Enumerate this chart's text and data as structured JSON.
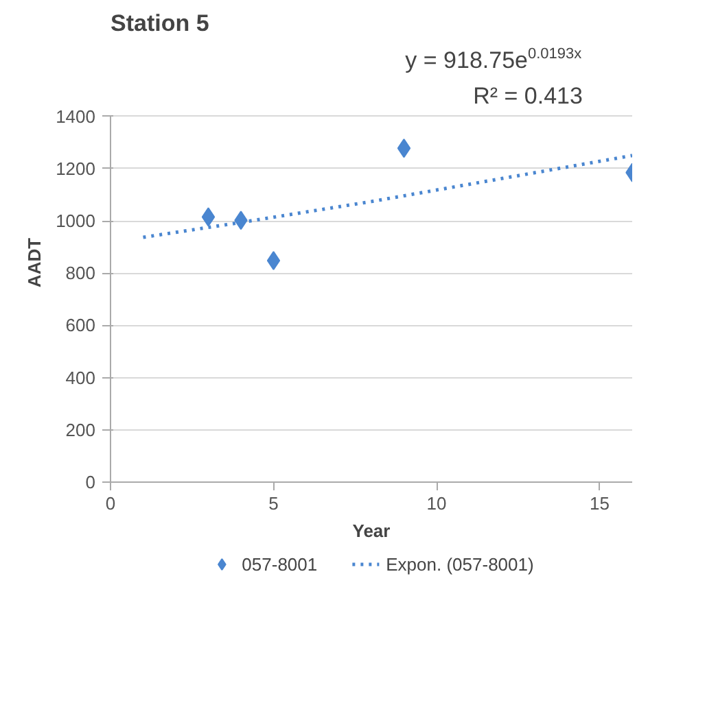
{
  "chart_data": {
    "type": "scatter",
    "title": "Station 5",
    "xlabel": "Year",
    "ylabel": "AADT",
    "annotations": [
      "y = 918.75e$^{0.0193x}$",
      "R² = 0.413"
    ],
    "series": [
      {
        "name": "057-8001",
        "color": "#4a86d0",
        "marker": "diamond",
        "x": [
          3,
          4,
          5,
          9,
          16
        ],
        "values": [
          1015,
          1002,
          848,
          1278,
          1185
        ]
      },
      {
        "name": "Expon. (057-8001)",
        "color": "#4a86d0",
        "type": "line",
        "line_style": "dotted",
        "x": [
          1,
          4,
          8,
          12,
          16
        ],
        "values": [
          937,
          994,
          1074,
          1162,
          1250
        ]
      }
    ],
    "xlim": [
      0,
      16
    ],
    "ylim": [
      0,
      1400
    ],
    "xticks": [
      0,
      5,
      10,
      15
    ],
    "yticks": [
      0,
      200,
      400,
      600,
      800,
      1000,
      1200,
      1400
    ],
    "grid": "y",
    "legend": "bottom"
  }
}
